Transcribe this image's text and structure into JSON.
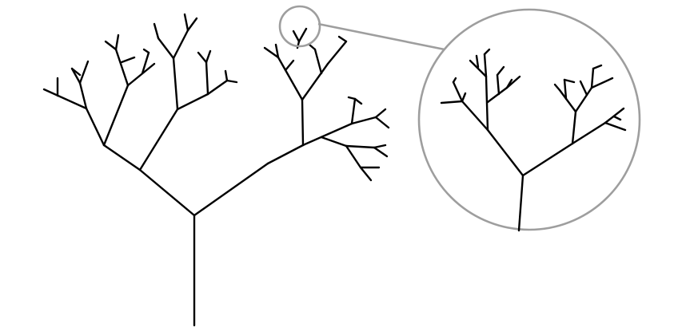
{
  "figure": {
    "subject": "fractal-tree-self-similarity",
    "colors": {
      "background": "#ffffff",
      "tree": "#000000",
      "callout": "#9e9e9e"
    },
    "callout": {
      "source": "small-circle-around-top-twig",
      "target": "large-magnified-circle",
      "connector": "straight-line"
    }
  }
}
